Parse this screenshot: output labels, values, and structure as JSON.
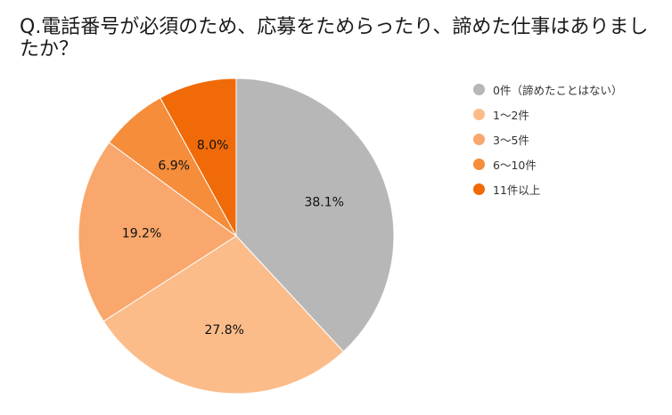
{
  "chart_data": {
    "type": "pie",
    "title": "Q.電話番号が必須のため、応募をためらったり、諦めた仕事はありましたか？",
    "categories": [
      "0件（諦めたことはない）",
      "1〜2件",
      "3〜5件",
      "6〜10件",
      "11件以上"
    ],
    "values": [
      38.1,
      27.8,
      19.2,
      6.9,
      8.0
    ],
    "value_labels": [
      "38.1%",
      "27.8%",
      "19.2%",
      "6.9%",
      "8.0%"
    ],
    "colors": [
      "#b7b7b7",
      "#fbbc8a",
      "#f9a76c",
      "#f58d3a",
      "#f06a08"
    ],
    "start_angle_deg": 0,
    "direction": "clockwise",
    "legend_position": "right"
  }
}
